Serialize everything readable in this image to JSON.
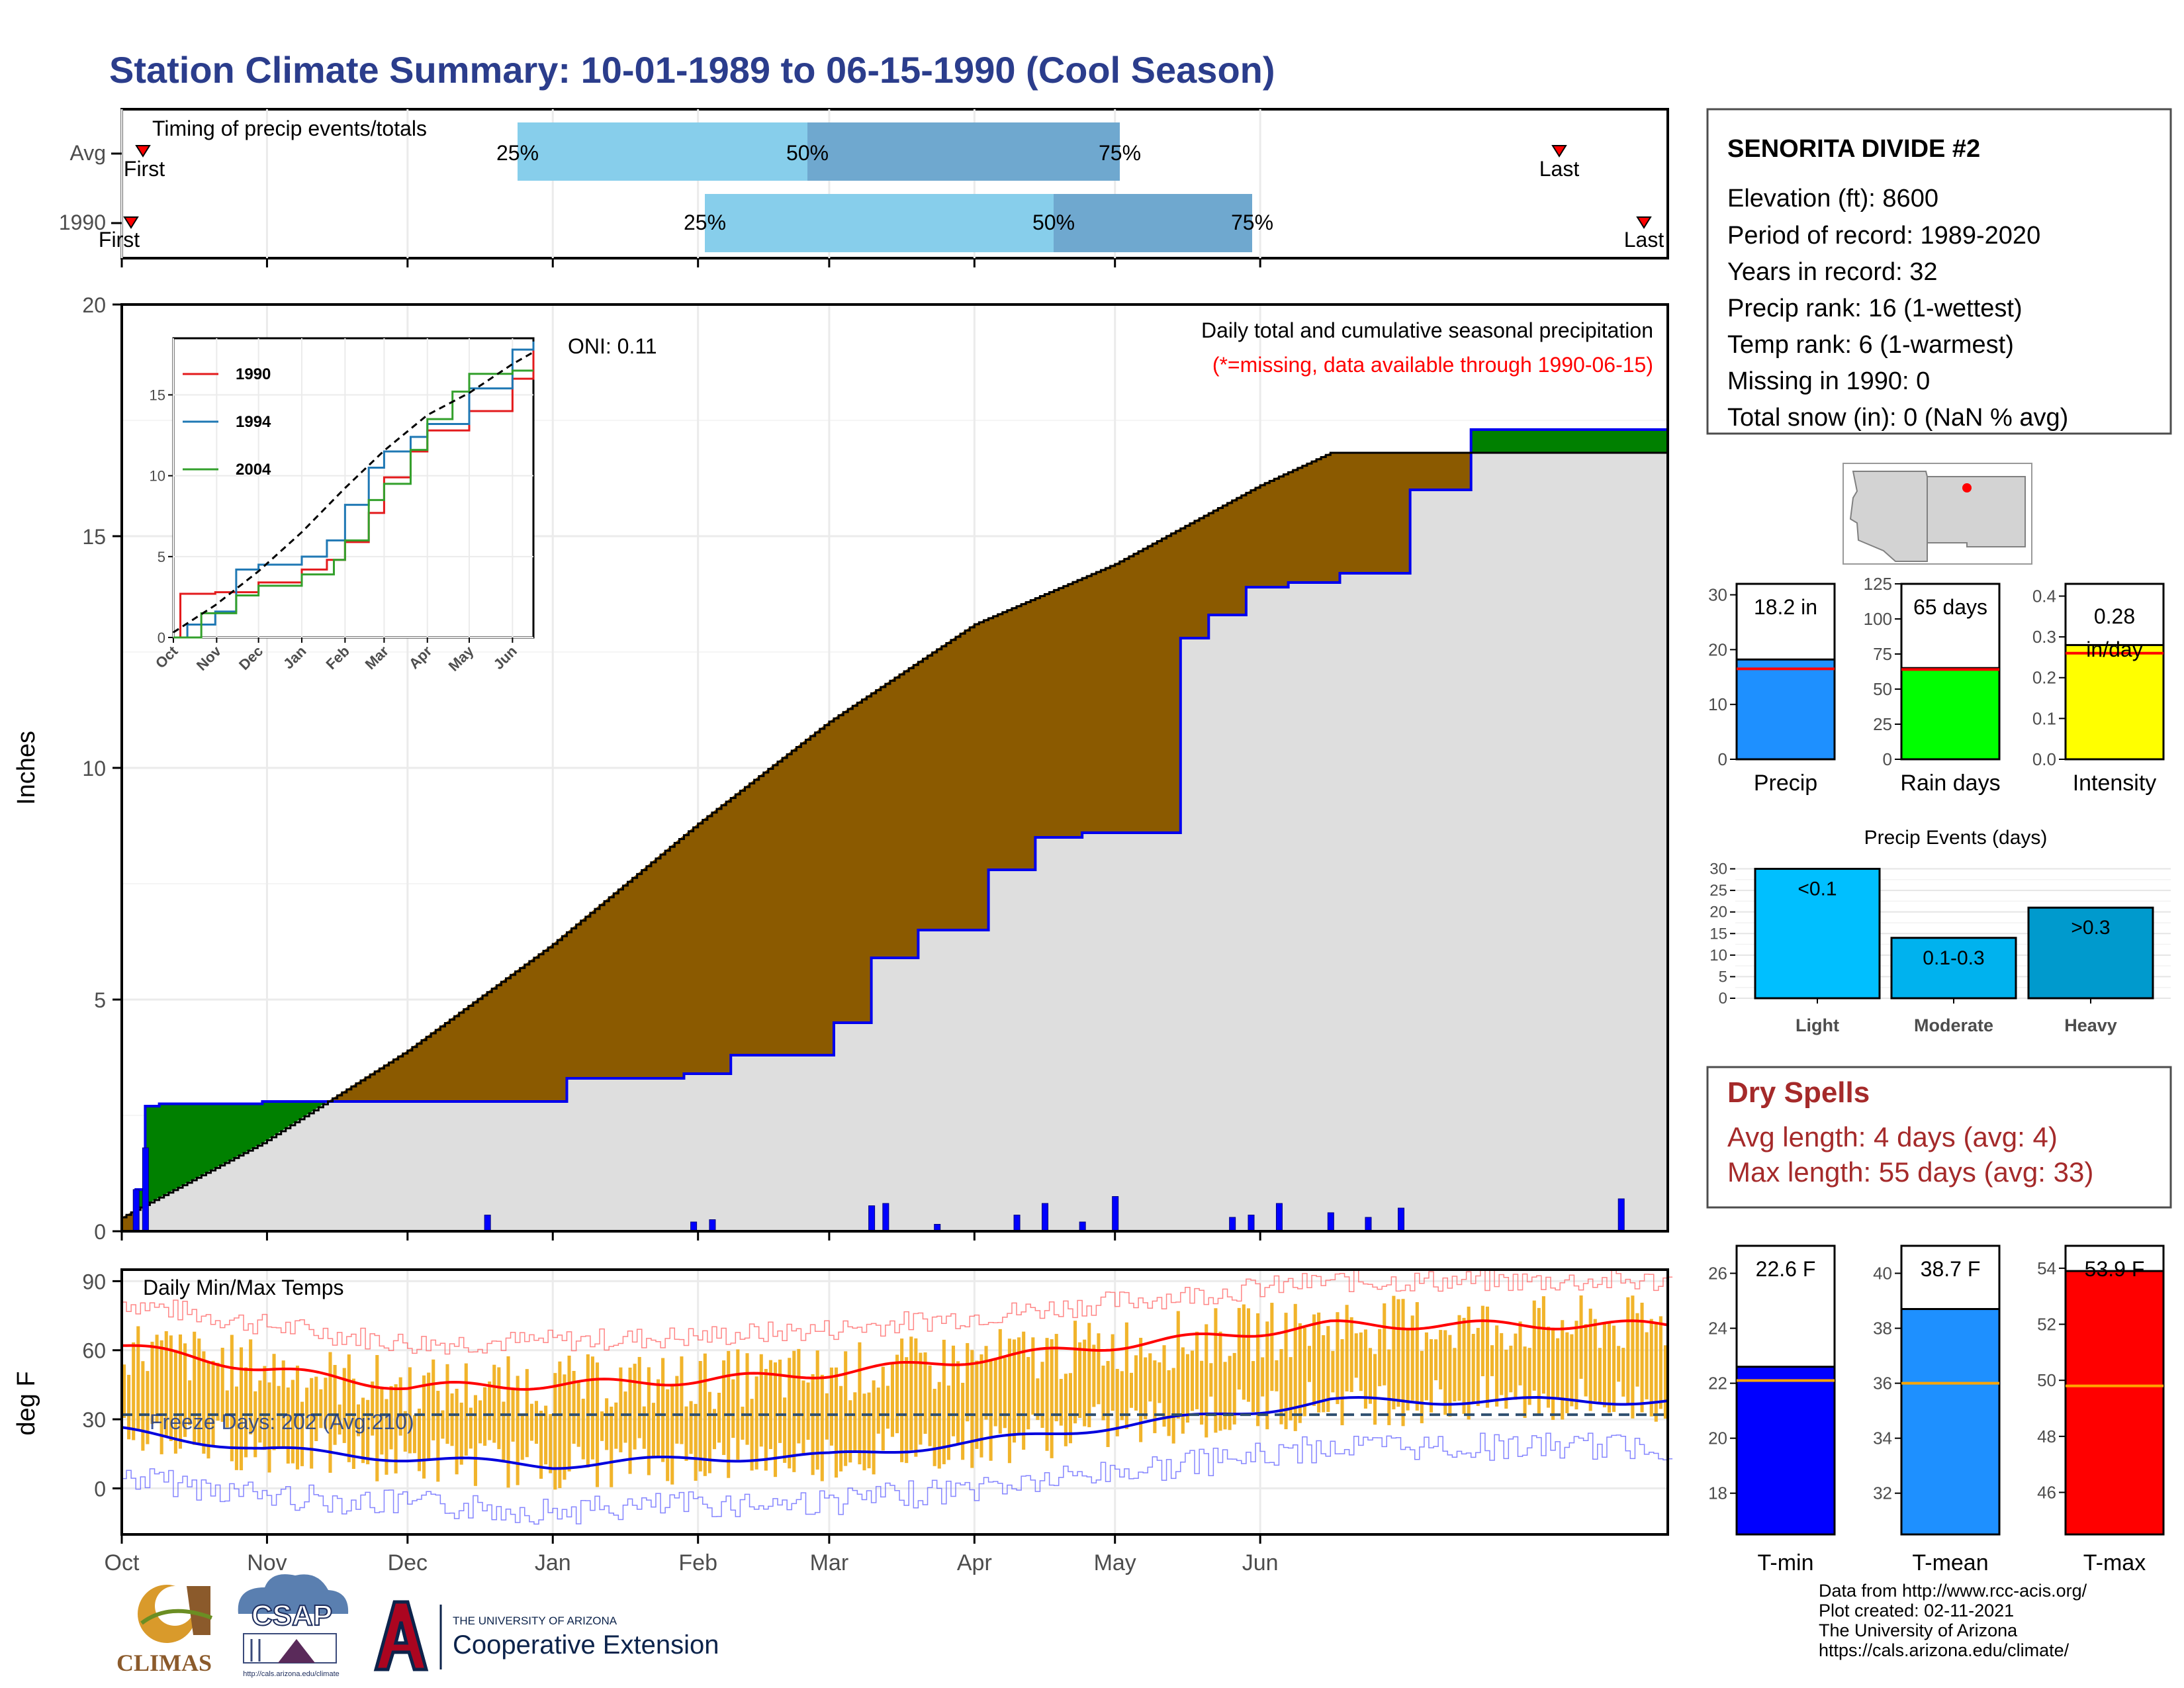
{
  "title": "Station Climate Summary: 10-01-1989 to 06-15-1990 (Cool Season)",
  "colors": {
    "title": "#2b3d8c",
    "above_avg_fill": "#008000",
    "below_avg_fill": "#8b5a00",
    "avg_fill": "#dedede",
    "precip_line": "#0000ee",
    "q_light": "#87ceeb",
    "q_dark": "#6fa8cf",
    "dry_spell": "#a52a2a"
  },
  "timing_panel": {
    "title": "Timing of precip events/totals",
    "rows": [
      {
        "label": "Avg",
        "first_label": "First",
        "last_label": "Last",
        "p25_label": "25%",
        "p50_label": "50%",
        "p75_label": "75%"
      },
      {
        "label": "1990",
        "first_label": "First",
        "last_label": "Last",
        "p25_label": "25%",
        "p50_label": "50%",
        "p75_label": "75%"
      }
    ]
  },
  "precip_panel": {
    "ylabel": "Inches",
    "yticks": [
      "0",
      "5",
      "10",
      "15",
      "20"
    ],
    "oni": "ONI: 0.11",
    "caption": "Daily total and cumulative seasonal precipitation",
    "missing_note": "(*=missing, data available through 1990-06-15)"
  },
  "inset": {
    "yticks": [
      "0",
      "5",
      "10",
      "15"
    ],
    "xticks": [
      "Oct",
      "Nov",
      "Dec",
      "Jan",
      "Feb",
      "Mar",
      "Apr",
      "May",
      "Jun"
    ],
    "legend": [
      {
        "label": "1990",
        "color": "#e31a1c"
      },
      {
        "label": "1994",
        "color": "#1f78b4"
      },
      {
        "label": "2004",
        "color": "#33a02c"
      }
    ]
  },
  "temp_panel": {
    "ylabel": "deg F",
    "title": "Daily Min/Max Temps",
    "freeze": "Freeze Days: 202 (Avg:210)",
    "yticks": [
      "0",
      "30",
      "60",
      "90"
    ],
    "xticks": [
      "Oct",
      "Nov",
      "Dec",
      "Jan",
      "Feb",
      "Mar",
      "Apr",
      "May",
      "Jun"
    ]
  },
  "station": {
    "name": "SENORITA DIVIDE #2",
    "lines": [
      "Elevation (ft): 8600",
      "Period of record: 1989-2020",
      "Years in record: 32",
      "Precip rank: 16 (1-wettest)",
      "Temp rank: 6 (1-warmest)",
      "Missing in 1990: 0",
      "Total snow (in): 0 (NaN % avg)"
    ]
  },
  "summary_bars": [
    {
      "label": "Precip",
      "value_label": "18.2 in",
      "value": 18.2,
      "avg": 16.5,
      "ymax": 32,
      "yticks": [
        "0",
        "10",
        "20",
        "30"
      ],
      "color": "#1e90ff"
    },
    {
      "label": "Rain days",
      "value_label": "65 days",
      "value": 65,
      "avg": 64,
      "ymax": 125,
      "yticks": [
        "0",
        "25",
        "50",
        "75",
        "100",
        "125"
      ],
      "color": "#00ff00"
    },
    {
      "label": "Intensity",
      "value_label_1": "0.28",
      "value_label_2": "in/day",
      "value": 0.28,
      "avg": 0.26,
      "ymax": 0.43,
      "yticks": [
        "0.0",
        "0.1",
        "0.2",
        "0.3",
        "0.4"
      ],
      "color": "#ffff00"
    }
  ],
  "precip_events": {
    "title": "Precip Events (days)",
    "yticks": [
      "0",
      "5",
      "10",
      "15",
      "20",
      "25",
      "30"
    ],
    "bars": [
      {
        "category": "Light",
        "label": "<0.1",
        "value": 30,
        "color": "#00bfff"
      },
      {
        "category": "Moderate",
        "label": "0.1-0.3",
        "value": 14,
        "color": "#00b2ee"
      },
      {
        "category": "Heavy",
        "label": ">0.3",
        "value": 21,
        "color": "#009acd"
      }
    ]
  },
  "dry_spells": {
    "title": "Dry Spells",
    "avg_line": "Avg length: 4 days (avg: 4)",
    "max_line": "Max length: 55 days (avg: 33)"
  },
  "temp_bars": [
    {
      "label": "T-min",
      "value_label": "22.6 F",
      "value": 22.6,
      "avg": 22.1,
      "ymin": 16.5,
      "ymax": 27,
      "yticks": [
        "18",
        "20",
        "22",
        "24",
        "26"
      ],
      "color": "#0000ff"
    },
    {
      "label": "T-mean",
      "value_label": "38.7 F",
      "value": 38.7,
      "avg": 36.0,
      "ymin": 30.5,
      "ymax": 41,
      "yticks": [
        "32",
        "34",
        "36",
        "38",
        "40"
      ],
      "color": "#1e90ff"
    },
    {
      "label": "T-max",
      "value_label": "53.9 F",
      "value": 53.9,
      "avg": 49.8,
      "ymin": 44.5,
      "ymax": 54.8,
      "yticks": [
        "46",
        "48",
        "50",
        "52",
        "54"
      ],
      "color": "#ff0000"
    }
  ],
  "footer": [
    "Data from http://www.rcc-acis.org/",
    "Plot created: 02-11-2021",
    "The University of Arizona",
    "https://cals.arizona.edu/climate/"
  ],
  "logos": {
    "climas": "CLIMAS",
    "csap": "CSAP",
    "csap_url": "http://cals.arizona.edu/climate",
    "ua_small": "THE UNIVERSITY OF ARIZONA",
    "ua_big": "Cooperative Extension"
  },
  "chart_data": [
    {
      "type": "area",
      "title": "Daily total and cumulative seasonal precipitation",
      "ylabel": "Inches",
      "ylim": [
        0,
        20
      ],
      "x_months": [
        "Oct",
        "Nov",
        "Dec",
        "Jan",
        "Feb",
        "Mar",
        "Apr",
        "May",
        "Jun"
      ],
      "series": [
        {
          "name": "1990 cumulative",
          "x_day": [
            0,
            3,
            5,
            8,
            30,
            80,
            95,
            120,
            130,
            152,
            160,
            170,
            185,
            195,
            205,
            226,
            232,
            240,
            249,
            260,
            275,
            288,
            298,
            330
          ],
          "values": [
            0,
            0.9,
            2.7,
            2.75,
            2.8,
            2.8,
            3.3,
            3.4,
            3.8,
            4.5,
            5.9,
            6.5,
            7.8,
            8.5,
            8.6,
            12.8,
            13.3,
            13.9,
            14.0,
            14.2,
            16.0,
            17.3,
            17.3,
            18.2
          ]
        },
        {
          "name": "Average cumulative",
          "x_day": [
            0,
            30,
            61,
            92,
            123,
            151,
            182,
            212,
            243,
            258
          ],
          "values": [
            0.3,
            1.9,
            3.9,
            6.2,
            8.8,
            11.0,
            13.1,
            14.4,
            16.1,
            16.8
          ]
        }
      ],
      "daily_bars": [
        {
          "day": 3,
          "value": 0.9
        },
        {
          "day": 5,
          "value": 1.8
        },
        {
          "day": 78,
          "value": 0.35
        },
        {
          "day": 122,
          "value": 0.2
        },
        {
          "day": 126,
          "value": 0.25
        },
        {
          "day": 160,
          "value": 0.55
        },
        {
          "day": 163,
          "value": 0.6
        },
        {
          "day": 174,
          "value": 0.15
        },
        {
          "day": 191,
          "value": 0.35
        },
        {
          "day": 197,
          "value": 0.6
        },
        {
          "day": 205,
          "value": 0.2
        },
        {
          "day": 212,
          "value": 0.75
        },
        {
          "day": 237,
          "value": 0.3
        },
        {
          "day": 241,
          "value": 0.35
        },
        {
          "day": 247,
          "value": 0.6
        },
        {
          "day": 258,
          "value": 0.4
        },
        {
          "day": 266,
          "value": 0.3
        },
        {
          "day": 273,
          "value": 0.5
        },
        {
          "day": 320,
          "value": 0.7
        }
      ]
    },
    {
      "type": "line",
      "title": "Daily Min/Max Temps",
      "ylabel": "deg F",
      "ylim": [
        -20,
        95
      ],
      "x_months": [
        "Oct",
        "Nov",
        "Dec",
        "Jan",
        "Feb",
        "Mar",
        "Apr",
        "May",
        "Jun"
      ],
      "series": [
        {
          "name": "Avg max",
          "x_day": [
            0,
            30,
            61,
            92,
            123,
            151,
            182,
            212,
            243,
            258
          ],
          "values": [
            62,
            52,
            44,
            45,
            47,
            50,
            56,
            62,
            68,
            71
          ]
        },
        {
          "name": "Avg min",
          "x_day": [
            0,
            30,
            61,
            92,
            123,
            151,
            182,
            212,
            243,
            258
          ],
          "values": [
            25,
            17,
            13,
            10,
            13,
            14,
            20,
            27,
            34,
            38
          ]
        }
      ]
    }
  ]
}
